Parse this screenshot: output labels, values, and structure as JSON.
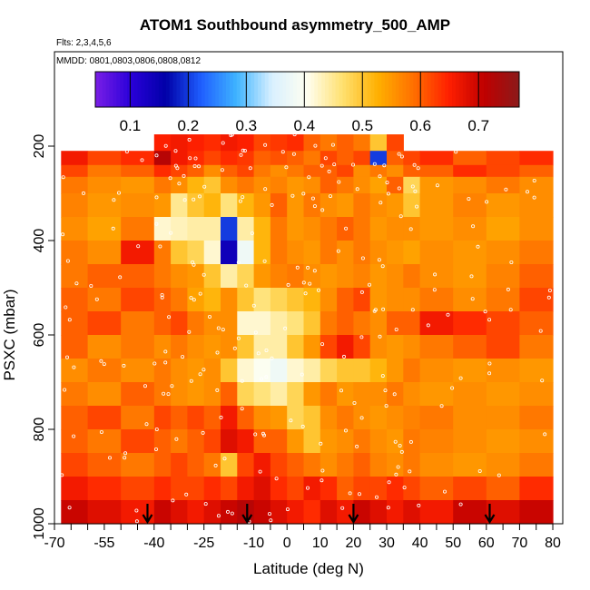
{
  "chart_data": {
    "type": "heatmap",
    "title": "ATOM1 Southbound asymmetry_500_AMP",
    "subtitle_flights": "Flts: 2,3,4,5,6",
    "subtitle_dates": "MMDD: 0801,0803,0806,0808,0812",
    "xlabel": "Latitude (deg N)",
    "ylabel": "PSXC (mbar)",
    "xlim": [
      -70,
      83
    ],
    "ylim": [
      1000,
      0
    ],
    "x_ticks": [
      "-70",
      "-55",
      "-40",
      "-25",
      "-10",
      "0",
      "10",
      "20",
      "30",
      "40",
      "50",
      "60",
      "70",
      "80"
    ],
    "x_tick_values": [
      -70,
      -55,
      -40,
      -25,
      -10,
      0,
      10,
      20,
      30,
      40,
      50,
      60,
      70,
      80
    ],
    "y_ticks": [
      "200",
      "400",
      "600",
      "800",
      "1000"
    ],
    "y_tick_values": [
      200,
      400,
      600,
      800,
      1000
    ],
    "colorbar": {
      "ticks": [
        "0.1",
        "0.2",
        "0.3",
        "0.4",
        "0.5",
        "0.6",
        "0.7"
      ],
      "tick_values": [
        0.1,
        0.2,
        0.3,
        0.4,
        0.5,
        0.6,
        0.7
      ],
      "range": [
        0.04,
        0.77
      ],
      "colors": [
        "#7a1fe6",
        "#2a00d9",
        "#0000a8",
        "#1f5fff",
        "#3fb4ff",
        "#d9f0ff",
        "#fffff0",
        "#ffe070",
        "#ffb000",
        "#ff7000",
        "#ff2000",
        "#c00000",
        "#8b1a1a"
      ]
    },
    "arrows_lat": [
      -42,
      -12,
      20,
      61
    ],
    "bins_pressure": [
      175,
      210,
      240,
      265,
      300,
      350,
      400,
      450,
      500,
      550,
      600,
      650,
      700,
      750,
      800,
      850,
      900,
      950,
      1000
    ],
    "bins_lat": [
      -68,
      -60,
      -50,
      -40,
      -35,
      -30,
      -25,
      -20,
      -15,
      -10,
      -5,
      0,
      5,
      10,
      15,
      20,
      25,
      30,
      35,
      40,
      50,
      60,
      70,
      80
    ],
    "values": [
      [
        null,
        null,
        null,
        0.65,
        0.66,
        0.65,
        0.64,
        0.66,
        0.65,
        0.62,
        0.63,
        0.64,
        0.6,
        0.58,
        0.6,
        0.58,
        0.5,
        0.62,
        null,
        null,
        null,
        null,
        null
      ],
      [
        0.66,
        0.62,
        0.64,
        0.72,
        0.66,
        0.64,
        0.62,
        0.64,
        0.63,
        0.6,
        0.61,
        0.6,
        0.58,
        0.62,
        0.6,
        0.62,
        0.2,
        0.6,
        0.62,
        0.64,
        0.6,
        0.62,
        0.64
      ],
      [
        0.62,
        0.58,
        0.6,
        0.64,
        0.62,
        0.6,
        0.56,
        0.6,
        0.62,
        0.58,
        0.56,
        0.58,
        0.6,
        0.6,
        0.62,
        0.56,
        0.58,
        0.56,
        0.6,
        0.6,
        0.64,
        0.62,
        0.6
      ],
      [
        0.58,
        0.56,
        0.55,
        0.58,
        0.56,
        0.52,
        0.5,
        0.56,
        0.58,
        0.56,
        0.57,
        0.55,
        0.56,
        0.6,
        0.58,
        0.56,
        0.54,
        0.6,
        0.48,
        0.55,
        0.56,
        0.58,
        0.56
      ],
      [
        0.57,
        0.55,
        0.56,
        0.55,
        0.45,
        0.5,
        0.52,
        0.46,
        0.52,
        0.55,
        0.6,
        0.55,
        0.58,
        0.56,
        0.55,
        0.58,
        0.56,
        0.55,
        0.5,
        0.55,
        0.57,
        0.55,
        0.56
      ],
      [
        0.56,
        0.54,
        0.58,
        0.42,
        0.43,
        0.44,
        0.44,
        0.2,
        0.44,
        0.52,
        0.58,
        0.55,
        0.56,
        0.58,
        0.6,
        0.58,
        0.55,
        0.56,
        0.56,
        0.55,
        0.56,
        0.54,
        0.56
      ],
      [
        0.58,
        0.56,
        0.66,
        0.58,
        0.5,
        0.48,
        0.42,
        0.14,
        0.38,
        0.52,
        0.58,
        0.56,
        0.55,
        0.58,
        0.56,
        0.58,
        0.56,
        0.55,
        0.54,
        0.56,
        0.55,
        0.56,
        0.58
      ],
      [
        0.58,
        0.6,
        0.6,
        0.58,
        0.56,
        0.55,
        0.5,
        0.44,
        0.48,
        0.55,
        0.57,
        0.58,
        0.56,
        0.55,
        0.56,
        0.57,
        0.55,
        0.56,
        0.58,
        0.56,
        0.55,
        0.57,
        0.6
      ],
      [
        0.6,
        0.58,
        0.62,
        0.6,
        0.58,
        0.54,
        0.52,
        0.56,
        0.5,
        0.46,
        0.48,
        0.5,
        0.52,
        0.56,
        0.6,
        0.62,
        0.55,
        0.56,
        0.56,
        0.58,
        0.56,
        0.58,
        0.62
      ],
      [
        0.6,
        0.62,
        0.58,
        0.6,
        0.62,
        0.58,
        0.56,
        0.56,
        0.42,
        0.42,
        0.44,
        0.46,
        0.5,
        0.58,
        0.6,
        0.58,
        0.56,
        0.6,
        0.6,
        0.66,
        0.64,
        0.62,
        0.6
      ],
      [
        0.6,
        0.56,
        0.58,
        0.56,
        0.58,
        0.56,
        0.55,
        0.56,
        0.5,
        0.44,
        0.44,
        0.5,
        0.55,
        0.62,
        0.66,
        0.62,
        0.56,
        0.55,
        0.56,
        0.58,
        0.6,
        0.62,
        0.58
      ],
      [
        0.56,
        0.58,
        0.56,
        0.58,
        0.56,
        0.55,
        0.56,
        0.5,
        0.42,
        0.4,
        0.38,
        0.42,
        0.44,
        0.48,
        0.5,
        0.5,
        0.52,
        0.55,
        0.58,
        0.56,
        0.55,
        0.56,
        0.55
      ],
      [
        0.58,
        0.56,
        0.6,
        0.58,
        0.56,
        0.55,
        0.56,
        0.6,
        0.48,
        0.46,
        0.44,
        0.48,
        0.55,
        0.58,
        0.55,
        0.56,
        0.56,
        0.58,
        0.56,
        0.55,
        0.56,
        0.55,
        0.56
      ],
      [
        0.6,
        0.62,
        0.58,
        0.62,
        0.6,
        0.62,
        0.6,
        0.66,
        0.6,
        0.56,
        0.55,
        0.48,
        0.5,
        0.56,
        0.58,
        0.56,
        0.55,
        0.56,
        0.57,
        0.58,
        0.56,
        0.56,
        0.58
      ],
      [
        0.6,
        0.58,
        0.62,
        0.6,
        0.58,
        0.6,
        0.62,
        0.68,
        0.66,
        0.6,
        0.6,
        0.55,
        0.5,
        0.55,
        0.56,
        0.58,
        0.56,
        0.55,
        0.58,
        0.57,
        0.56,
        0.55,
        0.56
      ],
      [
        0.62,
        0.6,
        0.58,
        0.6,
        0.62,
        0.6,
        0.58,
        0.5,
        0.62,
        0.66,
        0.62,
        0.6,
        0.58,
        0.56,
        0.58,
        0.6,
        0.57,
        0.56,
        0.58,
        0.56,
        0.55,
        0.56,
        0.58
      ],
      [
        0.66,
        0.64,
        0.62,
        0.64,
        0.62,
        0.62,
        0.64,
        0.62,
        0.66,
        0.68,
        0.64,
        0.62,
        0.66,
        0.64,
        0.6,
        0.62,
        0.62,
        0.64,
        0.62,
        0.6,
        0.62,
        0.6,
        0.64
      ],
      [
        0.7,
        0.68,
        0.66,
        0.7,
        0.68,
        0.66,
        0.68,
        0.7,
        0.72,
        0.7,
        0.68,
        0.66,
        0.64,
        0.68,
        0.66,
        0.7,
        0.68,
        0.66,
        0.68,
        0.66,
        0.7,
        0.68,
        0.7
      ]
    ]
  }
}
